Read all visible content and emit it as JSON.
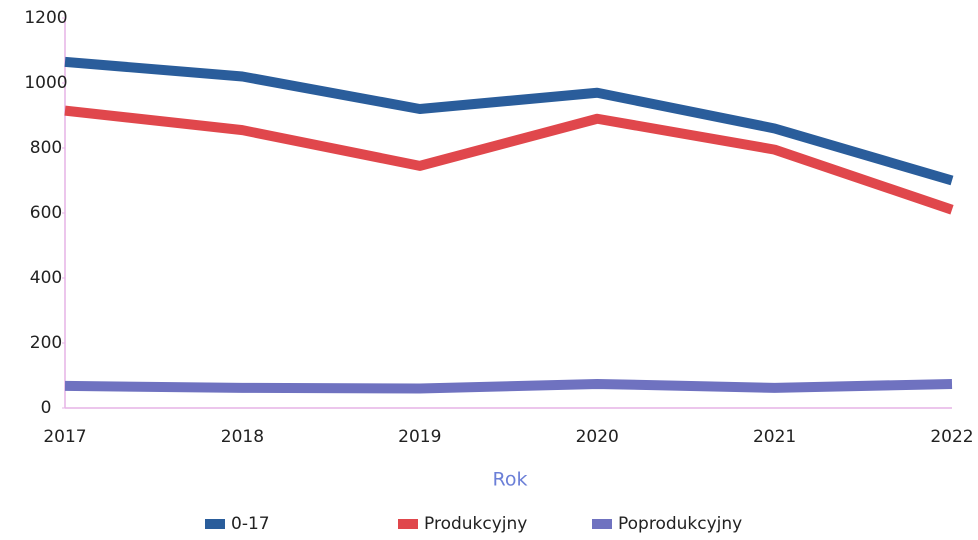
{
  "chart_data": {
    "type": "line",
    "x_label": "Rok",
    "categories": [
      "2017",
      "2018",
      "2019",
      "2020",
      "2021",
      "2022"
    ],
    "series": [
      {
        "name": "0-17",
        "color": "#2a5d9b",
        "values": [
          1065,
          1020,
          920,
          970,
          860,
          700
        ]
      },
      {
        "name": "Produkcyjny",
        "color": "#e0474c",
        "values": [
          915,
          855,
          745,
          890,
          795,
          610
        ]
      },
      {
        "name": "Poprodukcyjny",
        "color": "#6f72c0",
        "values": [
          68,
          62,
          60,
          74,
          62,
          74
        ]
      }
    ],
    "ylim": [
      0,
      1200
    ],
    "yticks": [
      0,
      200,
      400,
      600,
      800,
      1000,
      1200
    ],
    "grid": false,
    "legend": "bottom"
  }
}
